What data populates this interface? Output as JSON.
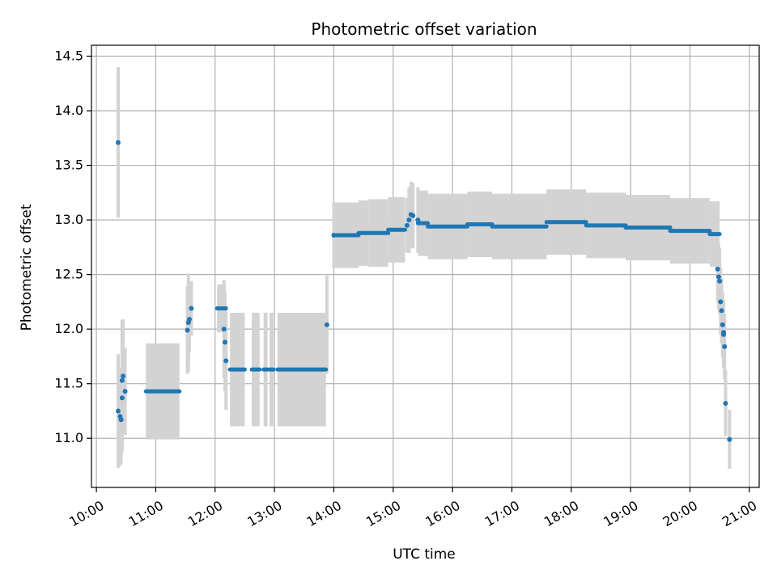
{
  "chart_data": {
    "type": "scatter",
    "title": "Photometric offset variation",
    "xlabel": "UTC time",
    "ylabel": "Photometric offset",
    "x_unit": "hours (UTC)",
    "xlim": [
      "09:55",
      "21:10"
    ],
    "ylim": [
      10.55,
      14.6
    ],
    "x_ticks": [
      "10:00",
      "11:00",
      "12:00",
      "13:00",
      "14:00",
      "15:00",
      "16:00",
      "17:00",
      "18:00",
      "19:00",
      "20:00",
      "21:00"
    ],
    "y_ticks": [
      "11.0",
      "11.5",
      "12.0",
      "12.5",
      "13.0",
      "13.5",
      "14.0",
      "14.5"
    ],
    "grid": true,
    "colors": {
      "points": "#1f77b4",
      "errorbars": "#d3d3d3",
      "grid": "#b0b0b0"
    },
    "points": [
      {
        "x": "10:22",
        "y": 13.71,
        "err": 0.69
      },
      {
        "x": "10:22",
        "y": 11.25,
        "err": 0.52
      },
      {
        "x": "10:24",
        "y": 11.2,
        "err": 0.45
      },
      {
        "x": "10:25",
        "y": 11.17,
        "err": 0.4
      },
      {
        "x": "10:26",
        "y": 11.37,
        "err": 0.5
      },
      {
        "x": "10:26",
        "y": 11.53,
        "err": 0.55
      },
      {
        "x": "10:27",
        "y": 11.57,
        "err": 0.52
      },
      {
        "x": "10:29",
        "y": 11.43,
        "err": 0.4
      },
      {
        "x": "11:32",
        "y": 11.99,
        "err": 0.4
      },
      {
        "x": "11:33",
        "y": 12.06,
        "err": 0.45
      },
      {
        "x": "11:34",
        "y": 12.09,
        "err": 0.3
      },
      {
        "x": "11:36",
        "y": 12.19,
        "err": 0.25
      },
      {
        "x": "12:09",
        "y": 12.0,
        "err": 0.45
      },
      {
        "x": "12:10",
        "y": 11.88,
        "err": 0.45
      },
      {
        "x": "12:11",
        "y": 11.71,
        "err": 0.45
      },
      {
        "x": "13:53",
        "y": 12.04,
        "err": 0.45
      },
      {
        "x": "14:00",
        "y": 12.86,
        "err": 0.3
      },
      {
        "x": "15:14",
        "y": 12.95,
        "err": 0.25
      },
      {
        "x": "15:16",
        "y": 13.0,
        "err": 0.3
      },
      {
        "x": "15:18",
        "y": 13.05,
        "err": 0.3
      },
      {
        "x": "15:20",
        "y": 13.04,
        "err": 0.3
      },
      {
        "x": "15:25",
        "y": 13.0,
        "err": 0.3
      },
      {
        "x": "20:28",
        "y": 12.55,
        "err": 0.3
      },
      {
        "x": "20:29",
        "y": 12.48,
        "err": 0.3
      },
      {
        "x": "20:30",
        "y": 12.44,
        "err": 0.3
      },
      {
        "x": "20:31",
        "y": 12.25,
        "err": 0.3
      },
      {
        "x": "20:32",
        "y": 12.17,
        "err": 0.3
      },
      {
        "x": "20:33",
        "y": 12.04,
        "err": 0.3
      },
      {
        "x": "20:34",
        "y": 11.97,
        "err": 0.3
      },
      {
        "x": "20:34",
        "y": 11.95,
        "err": 0.3
      },
      {
        "x": "20:35",
        "y": 11.84,
        "err": 0.3
      },
      {
        "x": "20:36",
        "y": 11.32,
        "err": 0.3
      },
      {
        "x": "20:40",
        "y": 10.99,
        "err": 0.27
      }
    ],
    "segments": [
      {
        "x_start": "10:50",
        "x_end": "11:24",
        "y": 11.43,
        "err": 0.44
      },
      {
        "x_start": "12:02",
        "x_end": "12:11",
        "y": 12.19,
        "err": 0.22
      },
      {
        "x_start": "12:15",
        "x_end": "12:30",
        "y": 11.63,
        "err": 0.52
      },
      {
        "x_start": "12:37",
        "x_end": "12:45",
        "y": 11.63,
        "err": 0.52
      },
      {
        "x_start": "12:49",
        "x_end": "12:53",
        "y": 11.63,
        "err": 0.52
      },
      {
        "x_start": "12:55",
        "x_end": "12:59",
        "y": 11.63,
        "err": 0.52
      },
      {
        "x_start": "13:03",
        "x_end": "13:52",
        "y": 11.63,
        "err": 0.52
      },
      {
        "x_start": "14:00",
        "x_end": "14:25",
        "y": 12.86,
        "err": 0.3
      },
      {
        "x_start": "14:25",
        "x_end": "14:35",
        "y": 12.88,
        "err": 0.3
      },
      {
        "x_start": "14:35",
        "x_end": "14:55",
        "y": 12.88,
        "err": 0.31
      },
      {
        "x_start": "14:55",
        "x_end": "15:12",
        "y": 12.91,
        "err": 0.3
      },
      {
        "x_start": "15:25",
        "x_end": "15:35",
        "y": 12.97,
        "err": 0.3
      },
      {
        "x_start": "15:35",
        "x_end": "16:15",
        "y": 12.94,
        "err": 0.3
      },
      {
        "x_start": "16:15",
        "x_end": "16:40",
        "y": 12.96,
        "err": 0.3
      },
      {
        "x_start": "16:40",
        "x_end": "17:35",
        "y": 12.94,
        "err": 0.3
      },
      {
        "x_start": "17:35",
        "x_end": "18:15",
        "y": 12.98,
        "err": 0.3
      },
      {
        "x_start": "18:15",
        "x_end": "18:55",
        "y": 12.95,
        "err": 0.3
      },
      {
        "x_start": "18:55",
        "x_end": "19:40",
        "y": 12.93,
        "err": 0.3
      },
      {
        "x_start": "19:40",
        "x_end": "20:20",
        "y": 12.9,
        "err": 0.3
      },
      {
        "x_start": "20:20",
        "x_end": "20:30",
        "y": 12.87,
        "err": 0.3
      }
    ]
  }
}
